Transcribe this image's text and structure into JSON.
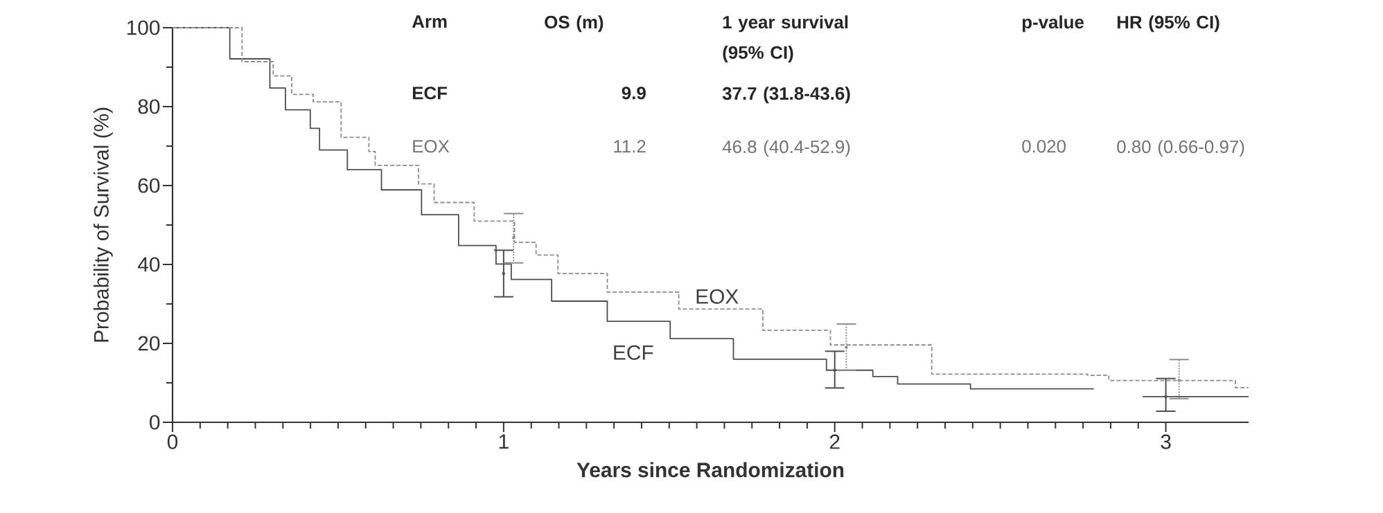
{
  "chart_data": {
    "type": "step",
    "xlabel": "Years since Randomization",
    "ylabel": "Probability of Survival (%)",
    "xlim": [
      0,
      3.25
    ],
    "ylim": [
      0,
      100
    ],
    "xticks": [
      0,
      1,
      2,
      3
    ],
    "yticks": [
      0,
      20,
      40,
      60,
      80,
      100
    ],
    "annotations": [
      "Arm",
      "OS (m)",
      "1 year survival (95% CI)",
      "p-value",
      "HR (95% CI)",
      "ECF",
      "9.9",
      "37.7 (31.8-43.6)",
      "EOX",
      "11.2",
      "46.8 (40.4-52.9)",
      "0.020",
      "0.80 (0.66-0.97)"
    ],
    "series": [
      {
        "name": "ECF",
        "color": "#4d4d4d",
        "line_style": "solid",
        "x": [
          0,
          0.173,
          0.294,
          0.341,
          0.416,
          0.444,
          0.528,
          0.631,
          0.752,
          0.864,
          0.977,
          1.023,
          1.145,
          1.313,
          1.503,
          1.694,
          1.975,
          2.115,
          2.19,
          2.41,
          2.78,
          2.8,
          2.93,
          3.25
        ],
        "values": [
          100,
          92.1,
          84.7,
          79.2,
          74.5,
          69.0,
          64.0,
          58.9,
          52.6,
          44.8,
          40.1,
          36.2,
          30.7,
          25.6,
          21.2,
          16.0,
          13.2,
          11.6,
          9.7,
          8.5,
          8.3,
          null,
          6.5,
          6.5
        ]
      },
      {
        "name": "EOX",
        "color": "#8c8c8c",
        "line_style": "dashed",
        "x": [
          0,
          0.21,
          0.304,
          0.36,
          0.425,
          0.509,
          0.593,
          0.612,
          0.743,
          0.79,
          0.911,
          1.033,
          1.098,
          1.164,
          1.313,
          1.529,
          1.783,
          1.987,
          2.293,
          2.764,
          2.828,
          3.21,
          3.25
        ],
        "values": [
          100,
          91.4,
          87.8,
          83.1,
          81.2,
          72.2,
          68.6,
          65.1,
          60.4,
          55.7,
          51.0,
          45.6,
          42.4,
          37.7,
          33.0,
          28.7,
          23.3,
          19.6,
          12.2,
          11.9,
          10.6,
          8.8,
          8.8
        ]
      },
      {
        "type": "scatter",
        "color": "#4d4d4d",
        "line_style": "solid",
        "x": [
          1,
          2,
          3
        ],
        "values": [
          37.7,
          13.2,
          6.5
        ],
        "errors": [
          [
            31.8,
            43.6
          ],
          [
            8.7,
            18.0
          ],
          [
            2.8,
            11.1
          ]
        ]
      },
      {
        "type": "scatter",
        "color": "#8c8c8c",
        "line_style": "dotted",
        "x": [
          1.03,
          2.035,
          3.04
        ],
        "values": [
          46.8,
          19.0,
          10.6
        ],
        "errors": [
          [
            40.4,
            52.9
          ],
          [
            13.2,
            24.9
          ],
          [
            6.0,
            15.9
          ]
        ]
      }
    ]
  }
}
